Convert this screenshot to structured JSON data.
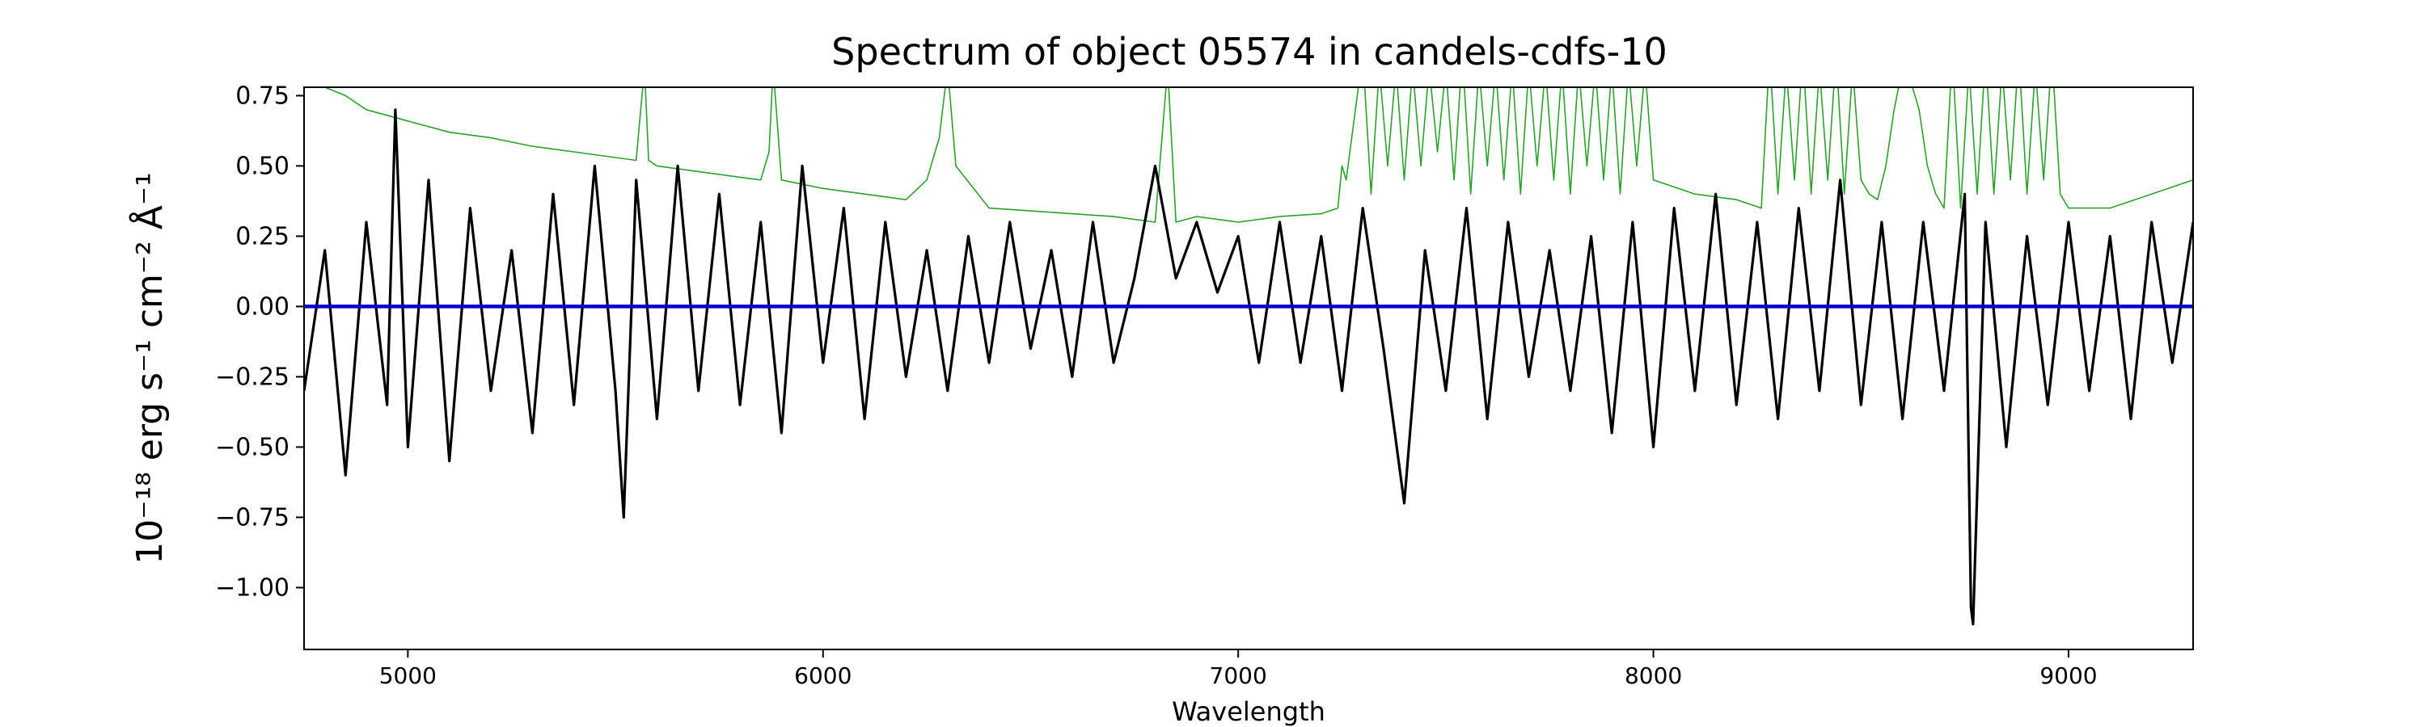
{
  "chart_data": {
    "type": "line",
    "title": "Spectrum of object 05574 in candels-cdfs-10",
    "xlabel": "Wavelength",
    "ylabel": "10⁻¹⁸ erg s⁻¹ cm⁻² Å⁻¹",
    "xlim": [
      4750,
      9300
    ],
    "ylim": [
      -1.22,
      0.78
    ],
    "x_ticks": [
      5000,
      6000,
      7000,
      8000,
      9000
    ],
    "x_tick_labels": [
      "5000",
      "6000",
      "7000",
      "8000",
      "9000"
    ],
    "y_ticks": [
      0.75,
      0.5,
      0.25,
      0.0,
      -0.25,
      -0.5,
      -0.75,
      -1.0
    ],
    "y_tick_labels": [
      "0.75",
      "0.50",
      "0.25",
      "0.00",
      "−0.25",
      "−0.50",
      "−0.75",
      "−1.00"
    ],
    "grid": false,
    "legend": "none",
    "colors": {
      "flux": "#000000",
      "error": "#2ca02c",
      "zero": "#0000cc"
    },
    "series": [
      {
        "role": "flux",
        "x": [
          4750,
          4800,
          4850,
          4900,
          4950,
          4970,
          5000,
          5050,
          5100,
          5150,
          5200,
          5250,
          5300,
          5350,
          5400,
          5450,
          5500,
          5520,
          5550,
          5600,
          5650,
          5700,
          5750,
          5800,
          5850,
          5900,
          5950,
          6000,
          6050,
          6100,
          6150,
          6200,
          6250,
          6300,
          6350,
          6400,
          6450,
          6500,
          6550,
          6600,
          6650,
          6700,
          6750,
          6800,
          6850,
          6900,
          6950,
          7000,
          7050,
          7100,
          7150,
          7200,
          7250,
          7300,
          7350,
          7400,
          7450,
          7500,
          7550,
          7600,
          7650,
          7700,
          7750,
          7800,
          7850,
          7900,
          7950,
          8000,
          8050,
          8100,
          8150,
          8200,
          8250,
          8300,
          8350,
          8400,
          8450,
          8500,
          8550,
          8600,
          8650,
          8700,
          8750,
          8765,
          8770,
          8800,
          8850,
          8900,
          8950,
          9000,
          9050,
          9100,
          9150,
          9200,
          9250,
          9300
        ],
        "y": [
          -0.3,
          0.2,
          -0.6,
          0.3,
          -0.35,
          0.7,
          -0.5,
          0.45,
          -0.55,
          0.35,
          -0.3,
          0.2,
          -0.45,
          0.4,
          -0.35,
          0.5,
          -0.3,
          -0.75,
          0.45,
          -0.4,
          0.5,
          -0.3,
          0.4,
          -0.35,
          0.3,
          -0.45,
          0.5,
          -0.2,
          0.35,
          -0.4,
          0.3,
          -0.25,
          0.2,
          -0.3,
          0.25,
          -0.2,
          0.3,
          -0.15,
          0.2,
          -0.25,
          0.3,
          -0.2,
          0.1,
          0.5,
          0.1,
          0.3,
          0.05,
          0.25,
          -0.2,
          0.3,
          -0.2,
          0.25,
          -0.3,
          0.35,
          -0.15,
          -0.7,
          0.2,
          -0.3,
          0.35,
          -0.4,
          0.3,
          -0.25,
          0.2,
          -0.3,
          0.25,
          -0.45,
          0.3,
          -0.5,
          0.35,
          -0.3,
          0.4,
          -0.35,
          0.3,
          -0.4,
          0.35,
          -0.3,
          0.45,
          -0.35,
          0.3,
          -0.4,
          0.3,
          -0.3,
          0.4,
          -1.07,
          -1.13,
          0.3,
          -0.5,
          0.25,
          -0.35,
          0.3,
          -0.3,
          0.25,
          -0.4,
          0.3,
          -0.2,
          0.3
        ]
      },
      {
        "role": "error",
        "x": [
          4750,
          4800,
          4850,
          4900,
          5000,
          5100,
          5200,
          5300,
          5400,
          5500,
          5550,
          5570,
          5580,
          5600,
          5700,
          5800,
          5850,
          5870,
          5880,
          5900,
          6000,
          6100,
          6200,
          6250,
          6280,
          6300,
          6320,
          6400,
          6500,
          6600,
          6700,
          6800,
          6830,
          6850,
          6900,
          7000,
          7100,
          7200,
          7240,
          7250,
          7260,
          7300,
          7320,
          7340,
          7360,
          7380,
          7400,
          7420,
          7440,
          7460,
          7480,
          7500,
          7520,
          7540,
          7560,
          7580,
          7600,
          7620,
          7640,
          7660,
          7680,
          7700,
          7720,
          7740,
          7760,
          7780,
          7800,
          7820,
          7840,
          7860,
          7880,
          7900,
          7920,
          7940,
          7960,
          7980,
          8000,
          8100,
          8200,
          8260,
          8280,
          8300,
          8320,
          8340,
          8360,
          8380,
          8400,
          8420,
          8440,
          8460,
          8480,
          8500,
          8520,
          8540,
          8560,
          8580,
          8600,
          8620,
          8640,
          8660,
          8680,
          8700,
          8720,
          8740,
          8760,
          8780,
          8800,
          8820,
          8840,
          8860,
          8880,
          8900,
          8920,
          8940,
          8960,
          8980,
          9000,
          9100,
          9200,
          9300
        ],
        "y": [
          0.85,
          0.78,
          0.75,
          0.7,
          0.66,
          0.62,
          0.6,
          0.57,
          0.55,
          0.53,
          0.52,
          0.85,
          0.52,
          0.5,
          0.48,
          0.46,
          0.45,
          0.55,
          0.85,
          0.45,
          0.42,
          0.4,
          0.38,
          0.45,
          0.6,
          0.85,
          0.5,
          0.35,
          0.34,
          0.33,
          0.32,
          0.3,
          0.85,
          0.3,
          0.32,
          0.3,
          0.32,
          0.33,
          0.35,
          0.5,
          0.45,
          0.9,
          0.4,
          0.85,
          0.5,
          0.85,
          0.45,
          0.85,
          0.5,
          0.85,
          0.55,
          0.85,
          0.45,
          0.9,
          0.4,
          0.85,
          0.5,
          0.85,
          0.45,
          0.85,
          0.4,
          0.85,
          0.5,
          0.85,
          0.45,
          0.85,
          0.4,
          0.85,
          0.5,
          0.85,
          0.45,
          0.85,
          0.4,
          0.85,
          0.5,
          0.85,
          0.45,
          0.4,
          0.38,
          0.35,
          0.9,
          0.4,
          0.85,
          0.45,
          0.9,
          0.4,
          0.85,
          0.45,
          0.9,
          0.4,
          0.85,
          0.45,
          0.4,
          0.38,
          0.5,
          0.7,
          0.85,
          0.8,
          0.7,
          0.5,
          0.4,
          0.35,
          0.9,
          0.35,
          0.85,
          0.4,
          0.9,
          0.4,
          0.85,
          0.45,
          0.9,
          0.4,
          0.85,
          0.45,
          0.9,
          0.4,
          0.35,
          0.35,
          0.4,
          0.45
        ]
      },
      {
        "role": "zero",
        "x": [
          4750,
          9300
        ],
        "y": [
          0.0,
          0.0
        ]
      }
    ]
  }
}
